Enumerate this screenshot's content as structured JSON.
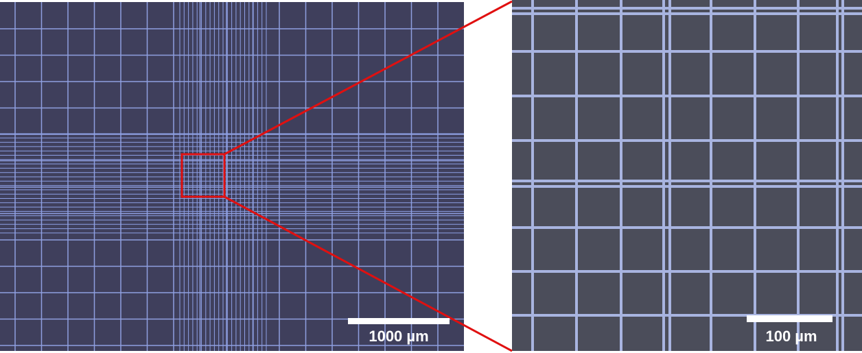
{
  "left_panel": {
    "scale_bar": {
      "label": "1000 µm"
    }
  },
  "right_panel": {
    "scale_bar": {
      "label": "100 µm"
    }
  }
}
